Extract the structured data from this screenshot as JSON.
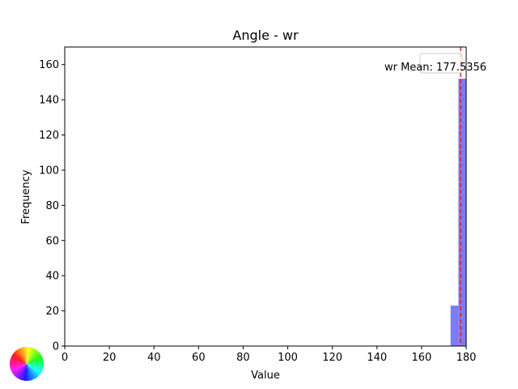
{
  "chart_data": {
    "type": "bar",
    "title": "Angle - wr",
    "xlabel": "Value",
    "ylabel": "Frequency",
    "xlim": [
      0,
      180
    ],
    "ylim": [
      0,
      170
    ],
    "xticks": [
      0,
      20,
      40,
      60,
      80,
      100,
      120,
      140,
      160,
      180
    ],
    "yticks": [
      0,
      20,
      40,
      60,
      80,
      100,
      120,
      140,
      160
    ],
    "bins": [
      {
        "x0": 173.0,
        "x1": 176.5,
        "value": 23
      },
      {
        "x0": 176.5,
        "x1": 180.0,
        "value": 152
      }
    ],
    "bar_color": "#7b7bf5",
    "mean": {
      "value": 177.5356,
      "label": "wr Mean: 177.5356",
      "color": "#e02020"
    },
    "legend_placement": "top-right",
    "grid": false
  },
  "colorwheel_icon": "hue-color-wheel"
}
